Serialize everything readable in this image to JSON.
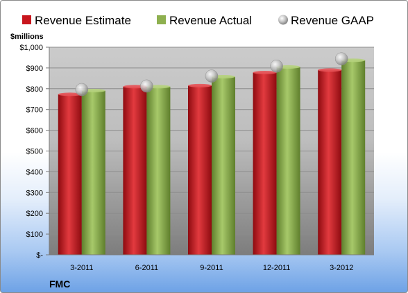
{
  "chart_data": {
    "type": "bar",
    "title": "",
    "ticker": "FMC",
    "unit_label": "$millions",
    "categories": [
      "3-2011",
      "6-2011",
      "9-2011",
      "12-2011",
      "3-2012"
    ],
    "series": [
      {
        "name": "Revenue Estimate",
        "type": "bar",
        "color": "#c8161d",
        "values": [
          773,
          810,
          815,
          878,
          890
        ]
      },
      {
        "name": "Revenue Actual",
        "type": "bar",
        "color": "#8eb04f",
        "values": [
          791,
          810,
          858,
          905,
          937
        ]
      },
      {
        "name": "Revenue GAAP",
        "type": "marker",
        "color": "#c0c0c0",
        "values": [
          796,
          813,
          861,
          909,
          944
        ]
      }
    ],
    "y_ticks": [
      "$-",
      "$100",
      "$200",
      "$300",
      "$400",
      "$500",
      "$600",
      "$700",
      "$800",
      "$900",
      "$1,000"
    ],
    "ylim": [
      0,
      1000
    ],
    "grid": true,
    "legend": "top"
  }
}
